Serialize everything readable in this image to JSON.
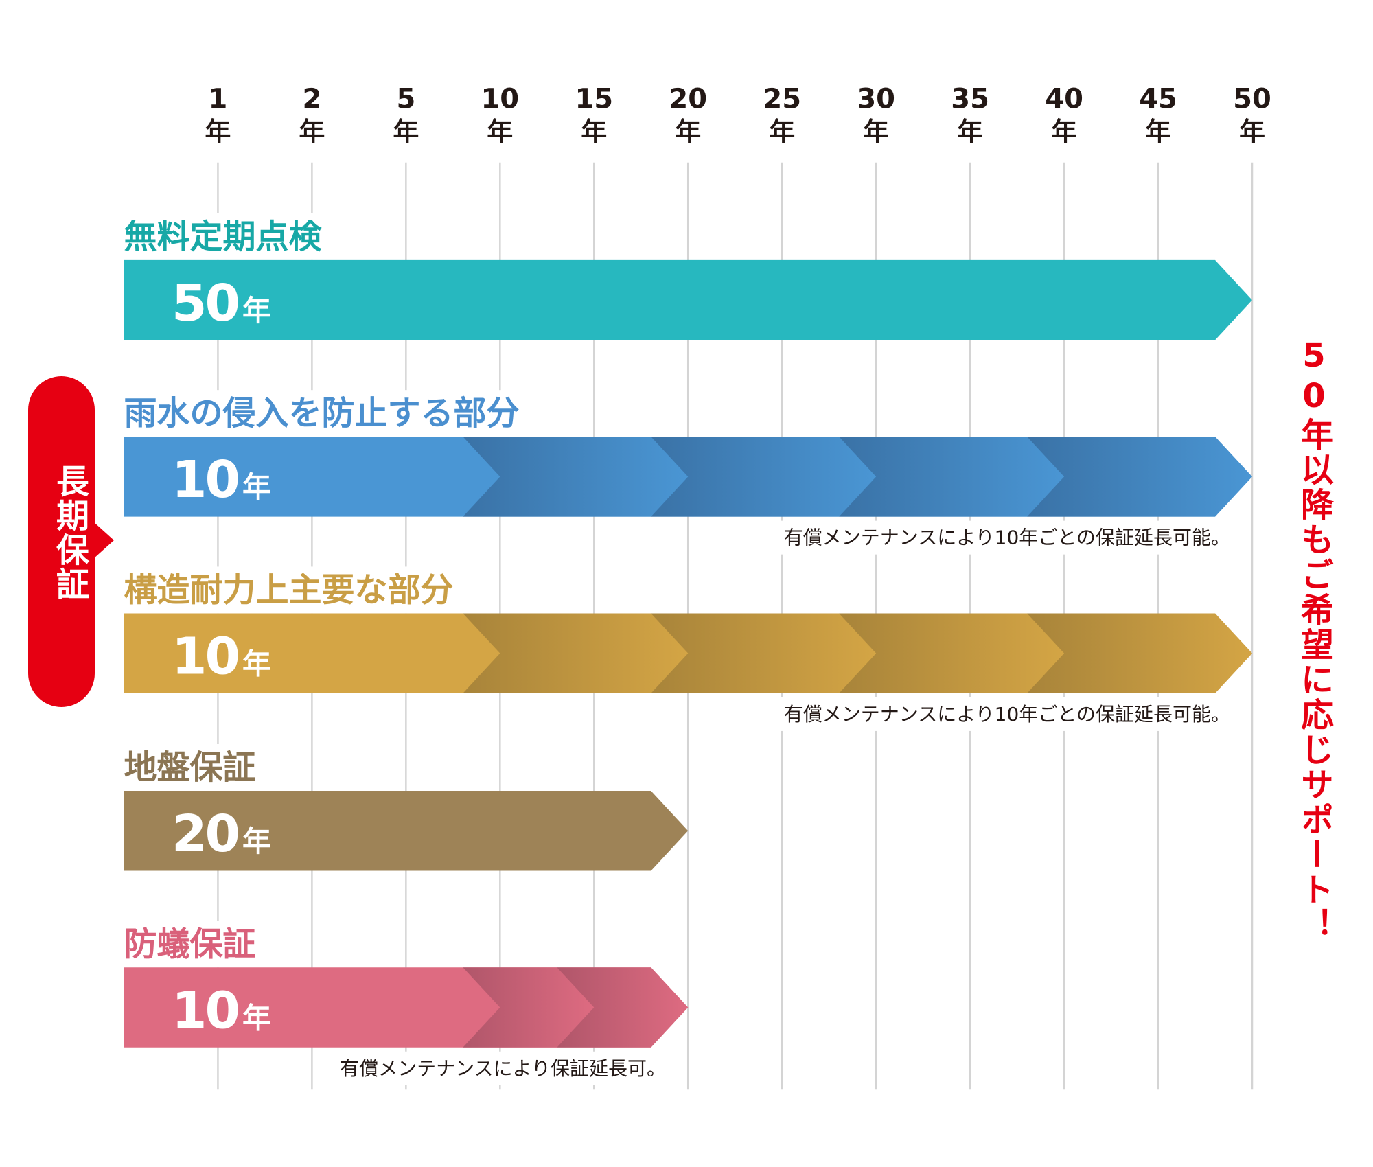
{
  "axis": [
    {
      "number": "1",
      "unit": "年"
    },
    {
      "number": "2",
      "unit": "年"
    },
    {
      "number": "5",
      "unit": "年"
    },
    {
      "number": "10",
      "unit": "年"
    },
    {
      "number": "15",
      "unit": "年"
    },
    {
      "number": "20",
      "unit": "年"
    },
    {
      "number": "25",
      "unit": "年"
    },
    {
      "number": "30",
      "unit": "年"
    },
    {
      "number": "35",
      "unit": "年"
    },
    {
      "number": "40",
      "unit": "年"
    },
    {
      "number": "45",
      "unit": "年"
    },
    {
      "number": "50",
      "unit": "年"
    }
  ],
  "group_label": "長期保証",
  "side_note": "50年以降もご希望に応じサポート！",
  "rows": [
    {
      "title": "無料定期点検",
      "number": "50",
      "unit": "年"
    },
    {
      "title": "雨水の侵入を防止する部分",
      "number": "10",
      "unit": "年",
      "note": "有償メンテナンスにより10年ごとの保証延長可能。"
    },
    {
      "title": "構造耐力上主要な部分",
      "number": "10",
      "unit": "年",
      "note": "有償メンテナンスにより10年ごとの保証延長可能。"
    },
    {
      "title": "地盤保証",
      "number": "20",
      "unit": "年"
    },
    {
      "title": "防蟻保証",
      "number": "10",
      "unit": "年",
      "note": "有償メンテナンスにより保証延長可。"
    }
  ]
}
